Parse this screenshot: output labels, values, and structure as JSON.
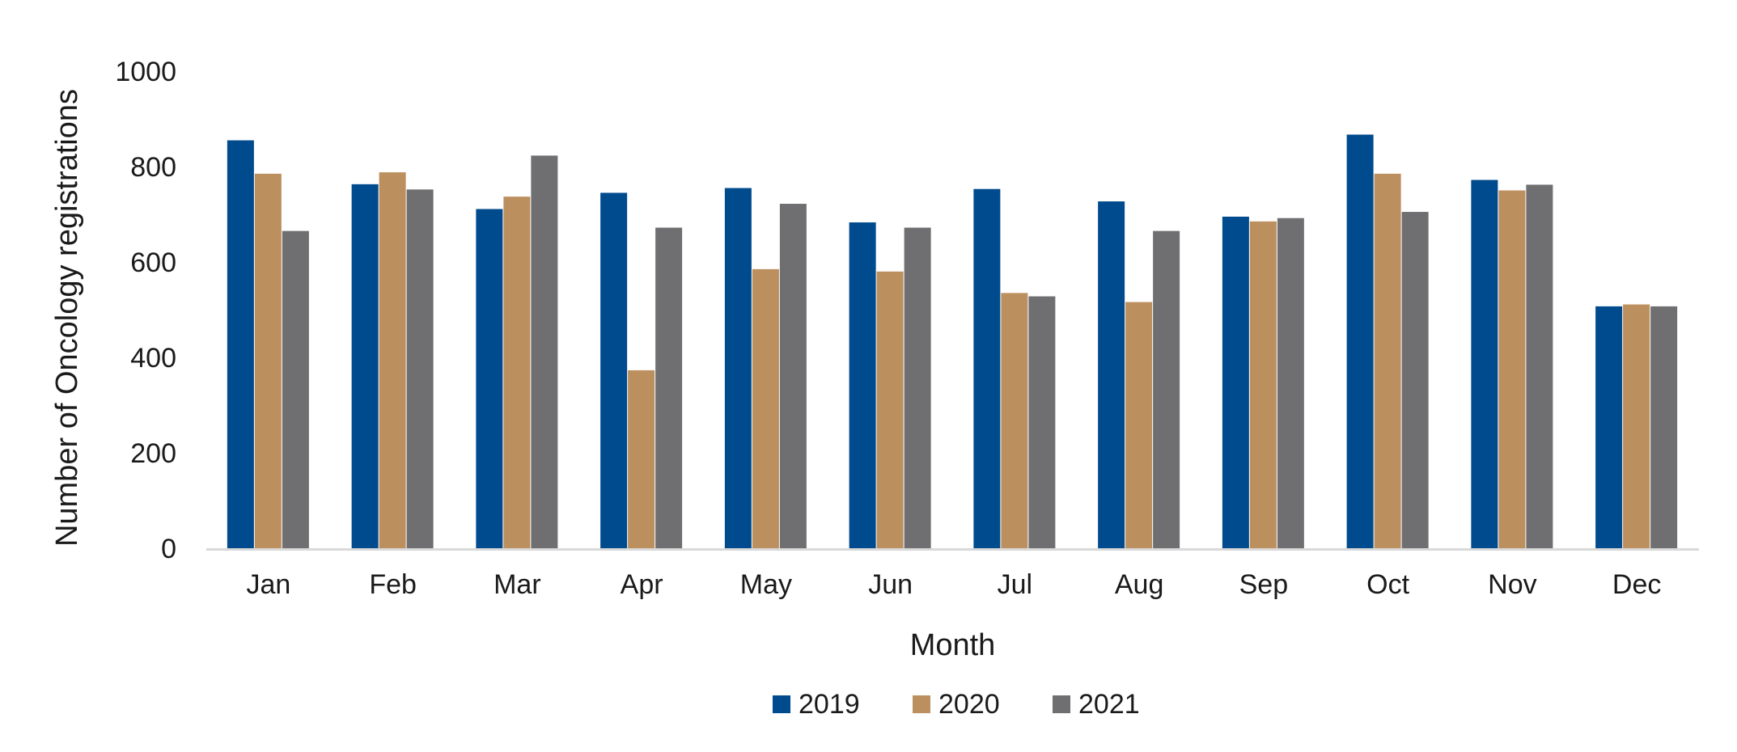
{
  "chart_data": {
    "type": "bar",
    "title": "",
    "xlabel": "Month",
    "ylabel": "Number of Oncology registrations",
    "categories": [
      "Jan",
      "Feb",
      "Mar",
      "Apr",
      "May",
      "Jun",
      "Jul",
      "Aug",
      "Sep",
      "Oct",
      "Nov",
      "Dec"
    ],
    "series": [
      {
        "name": "2019",
        "color": "#004B8D",
        "values": [
          855,
          763,
          711,
          745,
          755,
          683,
          753,
          727,
          695,
          867,
          772,
          507
        ]
      },
      {
        "name": "2020",
        "color": "#BC8F5F",
        "values": [
          785,
          788,
          737,
          373,
          585,
          580,
          535,
          516,
          685,
          785,
          750,
          511
        ]
      },
      {
        "name": "2021",
        "color": "#6F6F71",
        "values": [
          665,
          752,
          823,
          672,
          722,
          672,
          528,
          665,
          692,
          705,
          762,
          507
        ]
      }
    ],
    "ylim": [
      0,
      1000
    ],
    "yticks": [
      0,
      200,
      400,
      600,
      800,
      1000
    ],
    "grid": false,
    "legend_position": "bottom"
  }
}
